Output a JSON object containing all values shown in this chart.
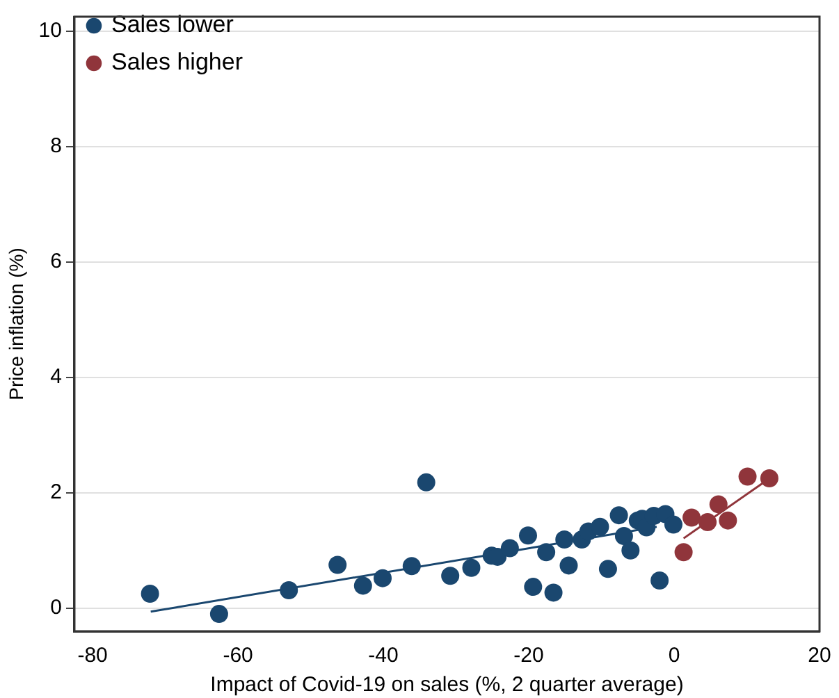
{
  "chart_data": {
    "type": "scatter",
    "xlabel": "Impact of Covid-19 on sales (%, 2 quarter average)",
    "ylabel": "Price inflation (%)",
    "xlim": [
      -82.5,
      20
    ],
    "xticks": [
      -80,
      -60,
      -40,
      -20,
      0,
      20
    ],
    "ylim": [
      -0.4,
      10.25
    ],
    "yticks": [
      0,
      2,
      4,
      6,
      8,
      10
    ],
    "grid": "y",
    "legend": "top left",
    "marker": "circle",
    "series": [
      {
        "name": "Sales lower",
        "color": "#1a476f",
        "x": [
          -72.1,
          -62.6,
          -53.0,
          -46.3,
          -42.8,
          -40.1,
          -36.1,
          -34.1,
          -30.8,
          -27.9,
          -25.1,
          -24.3,
          -22.6,
          -20.1,
          -19.4,
          -17.6,
          -16.6,
          -15.1,
          -14.5,
          -12.7,
          -11.8,
          -10.2,
          -9.1,
          -7.6,
          -6.9,
          -6.0,
          -5.0,
          -4.4,
          -3.8,
          -2.8,
          -2.0,
          -1.2,
          -0.1
        ],
        "values": [
          0.25,
          -0.1,
          0.31,
          0.75,
          0.39,
          0.52,
          0.73,
          2.18,
          0.56,
          0.7,
          0.91,
          0.89,
          1.04,
          1.26,
          0.37,
          0.97,
          0.27,
          1.19,
          0.74,
          1.19,
          1.33,
          1.41,
          0.68,
          1.61,
          1.25,
          1.0,
          1.52,
          1.55,
          1.4,
          1.6,
          0.48,
          1.63,
          1.45
        ]
      },
      {
        "name": "Sales higher",
        "color": "#90353b",
        "x": [
          1.3,
          2.4,
          4.6,
          6.1,
          7.4,
          10.1,
          13.1
        ],
        "values": [
          0.97,
          1.57,
          1.49,
          1.8,
          1.52,
          2.28,
          2.25
        ]
      },
      {
        "type": "line",
        "color": "#1a476f",
        "marker": "none",
        "x": [
          -72.0,
          -2.4
        ],
        "values": [
          -0.06,
          1.41
        ]
      },
      {
        "type": "line",
        "color": "#90353b",
        "marker": "none",
        "x": [
          1.3,
          12.9
        ],
        "values": [
          1.21,
          2.23
        ]
      }
    ]
  }
}
